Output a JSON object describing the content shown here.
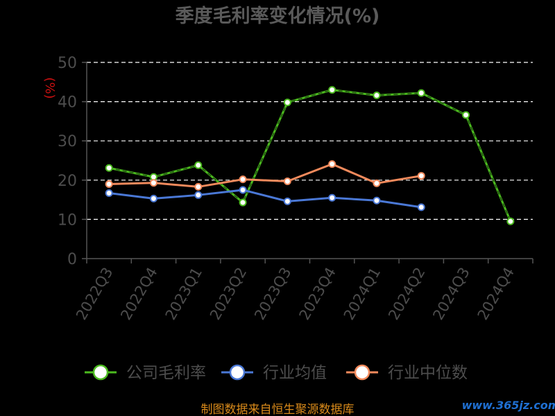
{
  "chart_data": {
    "type": "line",
    "title": "季度毛利率变化情况(%)",
    "ylabel": "(%)",
    "xlabel": "",
    "ylim": [
      0,
      50
    ],
    "yticks": [
      0,
      10,
      20,
      30,
      40,
      50
    ],
    "grid": true,
    "legend_position": "bottom",
    "categories": [
      "2022Q3",
      "2022Q4",
      "2023Q1",
      "2023Q2",
      "2023Q3",
      "2023Q4",
      "2024Q1",
      "2024Q2",
      "2024Q3",
      "2024Q4"
    ],
    "series": [
      {
        "name": "公司毛利率",
        "color": "#4cbb1f",
        "values": [
          23.1,
          20.8,
          23.8,
          14.3,
          39.8,
          43.0,
          41.6,
          42.2,
          36.6,
          9.5
        ]
      },
      {
        "name": "行业均值",
        "color": "#4a78d6",
        "values": [
          16.7,
          15.3,
          16.2,
          17.5,
          14.6,
          15.5,
          14.8,
          13.1,
          null,
          null
        ]
      },
      {
        "name": "行业中位数",
        "color": "#f28a5c",
        "values": [
          19.0,
          19.3,
          18.3,
          20.2,
          19.7,
          24.1,
          19.2,
          21.1,
          null,
          null
        ]
      }
    ]
  },
  "source": "制图数据来自恒生聚源数据库",
  "watermark": "www.365jz.com"
}
